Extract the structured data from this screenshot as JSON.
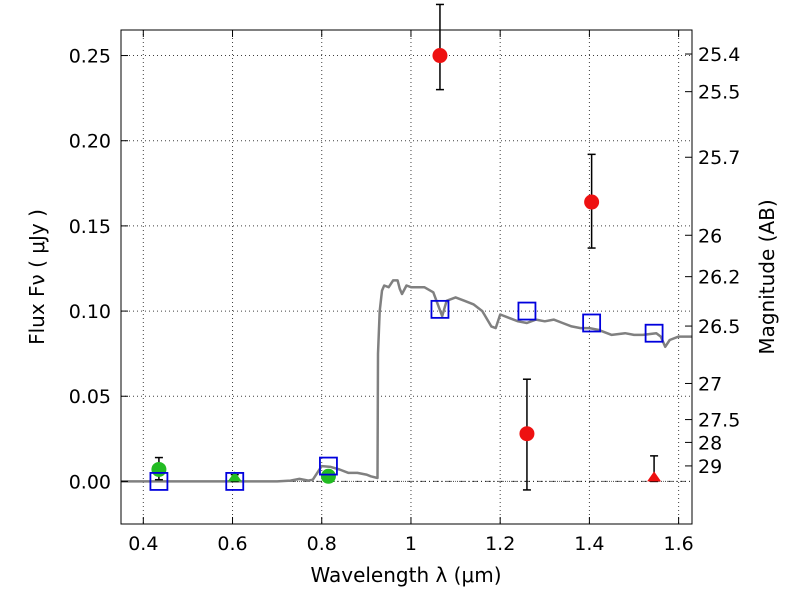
{
  "chart_data": {
    "type": "scatter",
    "xlabel": "Wavelength  λ (μm)",
    "ylabel": "Flux  Fν  ( μJy )",
    "ylabel_right": "Magnitude (AB)",
    "xlim": [
      0.35,
      1.63
    ],
    "ylim": [
      -0.025,
      0.265
    ],
    "grid": true,
    "x_ticks": [
      0.4,
      0.6,
      0.8,
      1.0,
      1.2,
      1.4,
      1.6
    ],
    "x_tick_labels": [
      "0.4",
      "0.6",
      "0.8",
      "1",
      "1.2",
      "1.4",
      "1.6"
    ],
    "y_ticks": [
      0.0,
      0.05,
      0.1,
      0.15,
      0.2,
      0.25
    ],
    "y_tick_labels": [
      "0.00",
      "0.05",
      "0.10",
      "0.15",
      "0.20",
      "0.25"
    ],
    "right_ticks": [
      {
        "label": "25.4",
        "flux": 0.2509
      },
      {
        "label": "25.5",
        "flux": 0.2288
      },
      {
        "label": "25.7",
        "flux": 0.1903
      },
      {
        "label": "26",
        "flux": 0.1445
      },
      {
        "label": "26.2",
        "flux": 0.1202
      },
      {
        "label": "26.5",
        "flux": 0.0912
      },
      {
        "label": "27",
        "flux": 0.0575
      },
      {
        "label": "27.5",
        "flux": 0.0363
      },
      {
        "label": "28",
        "flux": 0.0229
      },
      {
        "label": "29",
        "flux": 0.0091
      }
    ],
    "model_sed": {
      "color": "#808080",
      "x": [
        0.35,
        0.5,
        0.7,
        0.73,
        0.75,
        0.77,
        0.78,
        0.8,
        0.82,
        0.84,
        0.86,
        0.88,
        0.9,
        0.91,
        0.925,
        0.926,
        0.93,
        0.935,
        0.94,
        0.95,
        0.96,
        0.97,
        0.975,
        0.98,
        0.99,
        1.0,
        1.03,
        1.05,
        1.07,
        1.08,
        1.1,
        1.12,
        1.14,
        1.16,
        1.18,
        1.19,
        1.2,
        1.22,
        1.24,
        1.26,
        1.28,
        1.3,
        1.32,
        1.34,
        1.36,
        1.38,
        1.4,
        1.42,
        1.45,
        1.48,
        1.5,
        1.52,
        1.55,
        1.56,
        1.57,
        1.58,
        1.6,
        1.63
      ],
      "y": [
        0.0,
        0.0,
        0.0,
        0.0005,
        0.0015,
        0.0005,
        0.001,
        0.009,
        0.0085,
        0.007,
        0.005,
        0.005,
        0.004,
        0.003,
        0.002,
        0.075,
        0.1,
        0.112,
        0.115,
        0.114,
        0.118,
        0.118,
        0.113,
        0.11,
        0.115,
        0.114,
        0.114,
        0.111,
        0.097,
        0.106,
        0.108,
        0.106,
        0.104,
        0.1,
        0.091,
        0.09,
        0.098,
        0.096,
        0.094,
        0.093,
        0.095,
        0.094,
        0.095,
        0.093,
        0.091,
        0.09,
        0.09,
        0.089,
        0.086,
        0.087,
        0.086,
        0.086,
        0.087,
        0.085,
        0.079,
        0.083,
        0.085,
        0.085
      ]
    },
    "series": [
      {
        "marker": "circle",
        "color": "#22bb22",
        "points": [
          {
            "x": 0.435,
            "y": 0.007,
            "err_lo": 0.006,
            "err_hi": 0.007
          },
          {
            "x": 0.815,
            "y": 0.003,
            "err_lo": 0.003,
            "err_hi": 0.003
          }
        ]
      },
      {
        "marker": "triangle",
        "color": "#22bb22",
        "points": [
          {
            "x": 0.605,
            "y": 0.0,
            "err_lo": 0.0,
            "err_hi": 0.004
          }
        ]
      },
      {
        "marker": "circle",
        "color": "#ee1111",
        "points": [
          {
            "x": 1.065,
            "y": 0.25,
            "err_lo": 0.02,
            "err_hi": 0.03
          },
          {
            "x": 1.26,
            "y": 0.028,
            "err_lo": 0.033,
            "err_hi": 0.032
          },
          {
            "x": 1.405,
            "y": 0.164,
            "err_lo": 0.027,
            "err_hi": 0.028
          }
        ]
      },
      {
        "marker": "triangle",
        "color": "#ee1111",
        "points": [
          {
            "x": 1.545,
            "y": 0.0,
            "err_lo": 0.0,
            "err_hi": 0.015
          }
        ]
      },
      {
        "marker": "open-square",
        "color": "#0000dd",
        "points": [
          {
            "x": 0.435,
            "y": 0.0
          },
          {
            "x": 0.605,
            "y": 0.0
          },
          {
            "x": 0.815,
            "y": 0.009
          },
          {
            "x": 1.065,
            "y": 0.101
          },
          {
            "x": 1.26,
            "y": 0.1
          },
          {
            "x": 1.405,
            "y": 0.093
          },
          {
            "x": 1.545,
            "y": 0.087
          }
        ]
      }
    ]
  }
}
